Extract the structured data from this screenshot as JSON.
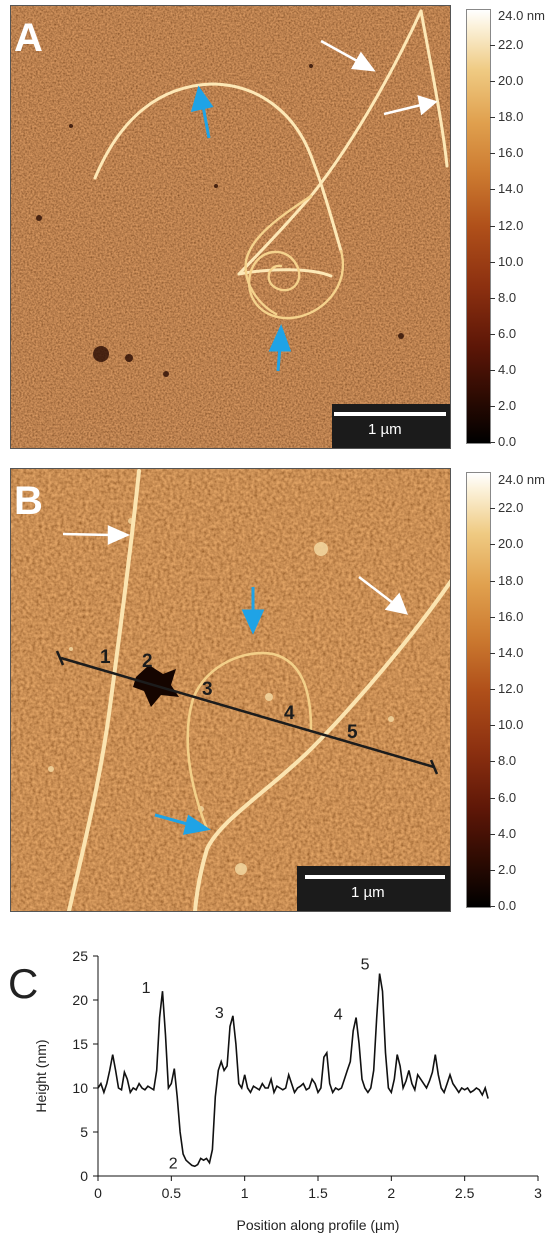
{
  "panels": [
    {
      "letter": "A",
      "scalebar": "1 µm",
      "colorbar": {
        "max_label": "24.0 nm",
        "ticks": [
          "22.0",
          "20.0",
          "18.0",
          "16.0",
          "14.0",
          "12.0",
          "10.0",
          "8.0",
          "6.0",
          "4.0",
          "2.0",
          "0.0"
        ]
      }
    },
    {
      "letter": "B",
      "scalebar": "1 µm",
      "colorbar": {
        "max_label": "24.0 nm",
        "ticks": [
          "22.0",
          "20.0",
          "18.0",
          "16.0",
          "14.0",
          "12.0",
          "10.0",
          "8.0",
          "6.0",
          "4.0",
          "2.0",
          "0.0"
        ]
      },
      "profile_labels": [
        "1",
        "2",
        "3",
        "4",
        "5"
      ]
    }
  ],
  "colors": {
    "afm_dark": "#7a2e0e",
    "afm_mid": "#a8521f",
    "arrow_white": "#ffffff",
    "arrow_blue": "#1fa3e6",
    "profile_line": "#1c1c1c"
  },
  "chart_data": {
    "type": "line",
    "panel_letter": "C",
    "xlabel": "Position along profile (µm)",
    "ylabel": "Height (nm)",
    "xlim": [
      0,
      3
    ],
    "ylim": [
      0,
      25
    ],
    "xticks": [
      "0",
      "0.5",
      "1",
      "1.5",
      "2",
      "2.5",
      "3"
    ],
    "yticks": [
      "0",
      "5",
      "10",
      "15",
      "20",
      "25"
    ],
    "series": [
      {
        "x": [
          0.0,
          0.02,
          0.04,
          0.06,
          0.08,
          0.1,
          0.12,
          0.14,
          0.16,
          0.18,
          0.2,
          0.22,
          0.24,
          0.26,
          0.28,
          0.3,
          0.32,
          0.34,
          0.36,
          0.38,
          0.4,
          0.42,
          0.44,
          0.46,
          0.48,
          0.5,
          0.52,
          0.54,
          0.56,
          0.58,
          0.6,
          0.62,
          0.64,
          0.66,
          0.68,
          0.7,
          0.72,
          0.74,
          0.76,
          0.78,
          0.8,
          0.82,
          0.84,
          0.86,
          0.88,
          0.9,
          0.92,
          0.94,
          0.96,
          0.98,
          1.0,
          1.02,
          1.04,
          1.06,
          1.08,
          1.1,
          1.12,
          1.14,
          1.16,
          1.18,
          1.2,
          1.22,
          1.24,
          1.26,
          1.28,
          1.3,
          1.32,
          1.34,
          1.36,
          1.38,
          1.4,
          1.42,
          1.44,
          1.46,
          1.48,
          1.5,
          1.52,
          1.54,
          1.56,
          1.58,
          1.6,
          1.62,
          1.64,
          1.66,
          1.68,
          1.7,
          1.72,
          1.74,
          1.76,
          1.78,
          1.8,
          1.82,
          1.84,
          1.86,
          1.88,
          1.9,
          1.92,
          1.94,
          1.96,
          1.98,
          2.0,
          2.02,
          2.04,
          2.06,
          2.08,
          2.1,
          2.12,
          2.14,
          2.16,
          2.18,
          2.2,
          2.22,
          2.24,
          2.26,
          2.28,
          2.3,
          2.32,
          2.34,
          2.36,
          2.38,
          2.4,
          2.42,
          2.44,
          2.46,
          2.48,
          2.5,
          2.52,
          2.54,
          2.56,
          2.58,
          2.6,
          2.62,
          2.64,
          2.66
        ],
        "y": [
          10,
          10.5,
          9.5,
          10.5,
          12,
          13.8,
          12,
          10,
          9.8,
          11.8,
          11,
          9.5,
          10,
          9.8,
          10.5,
          10,
          9.8,
          10.2,
          10,
          9.8,
          12,
          18,
          21,
          16,
          10,
          10.5,
          12.2,
          9,
          5,
          2.5,
          1.8,
          1.5,
          1.2,
          1.1,
          1.3,
          2,
          1.8,
          2,
          1.5,
          3,
          9,
          12,
          13,
          12,
          12.5,
          17,
          18.2,
          15,
          10.5,
          10,
          11.5,
          10,
          9.5,
          10.2,
          10,
          9.8,
          10.5,
          10,
          10,
          11,
          9.5,
          10.2,
          10,
          9.8,
          10,
          11.5,
          10.5,
          9.5,
          10,
          10.2,
          10.5,
          9.8,
          10,
          11,
          10.5,
          9.5,
          10,
          13.5,
          14,
          10.5,
          9.5,
          10,
          9.8,
          10,
          11,
          12,
          13,
          16.5,
          18,
          15,
          11,
          10,
          9.5,
          10,
          12,
          18,
          23,
          21,
          14,
          10,
          9.5,
          11,
          13.8,
          12.5,
          10,
          10.8,
          12,
          10.5,
          9.8,
          11.5,
          11,
          10.5,
          10,
          10.8,
          11.8,
          13.8,
          11.5,
          10,
          9.5,
          10.5,
          11.5,
          10.5,
          10,
          9.5,
          10,
          9.8,
          10,
          9.5,
          9.7,
          10,
          9.8,
          9.2,
          10,
          8.8
        ]
      }
    ],
    "annotations": [
      {
        "label": "1",
        "x": 0.42,
        "y": 21
      },
      {
        "label": "2",
        "x": 0.66,
        "y": 1.1
      },
      {
        "label": "3",
        "x": 0.92,
        "y": 18.2
      },
      {
        "label": "4",
        "x": 1.73,
        "y": 18
      },
      {
        "label": "5",
        "x": 1.9,
        "y": 23
      }
    ]
  }
}
